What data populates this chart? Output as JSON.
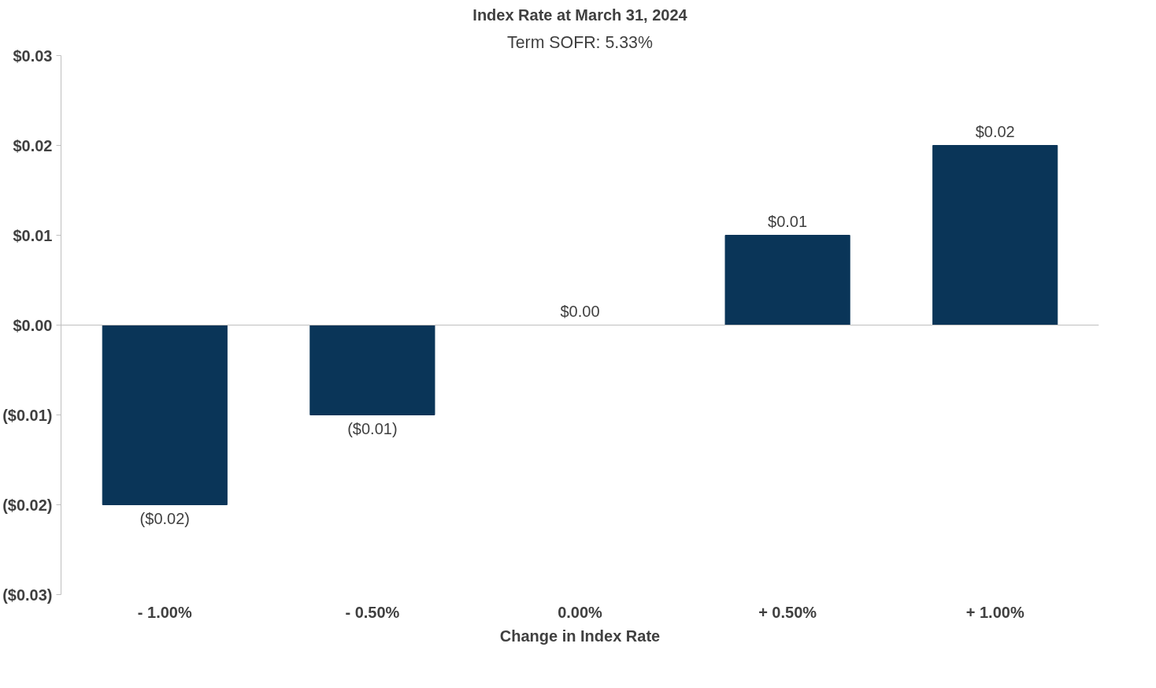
{
  "chart_data": {
    "type": "bar",
    "title": "Index Rate at March 31, 2024",
    "subtitle": "Term SOFR: 5.33%",
    "xlabel": "Change in Index Rate",
    "categories": [
      "- 1.00%",
      "- 0.50%",
      "0.00%",
      "+ 0.50%",
      "+ 1.00%"
    ],
    "values": [
      -0.02,
      -0.01,
      0.0,
      0.01,
      0.02
    ],
    "value_labels": [
      "($0.02)",
      "($0.01)",
      "$0.00",
      "$0.01",
      "$0.02"
    ],
    "color": "#0a3558",
    "ylim": [
      -0.03,
      0.03
    ],
    "yticks": [
      {
        "value": -0.03,
        "label": "($0.03)"
      },
      {
        "value": -0.02,
        "label": "($0.02)"
      },
      {
        "value": -0.01,
        "label": "($0.01)"
      },
      {
        "value": 0,
        "label": "$0.00"
      },
      {
        "value": 0.01,
        "label": "$0.01"
      },
      {
        "value": 0.02,
        "label": "$0.02"
      },
      {
        "value": 0.03,
        "label": "$0.03"
      }
    ],
    "ref_lines": [
      {
        "axis": "y",
        "value": 0,
        "color": "#bfbfbf"
      }
    ],
    "grid": false
  }
}
